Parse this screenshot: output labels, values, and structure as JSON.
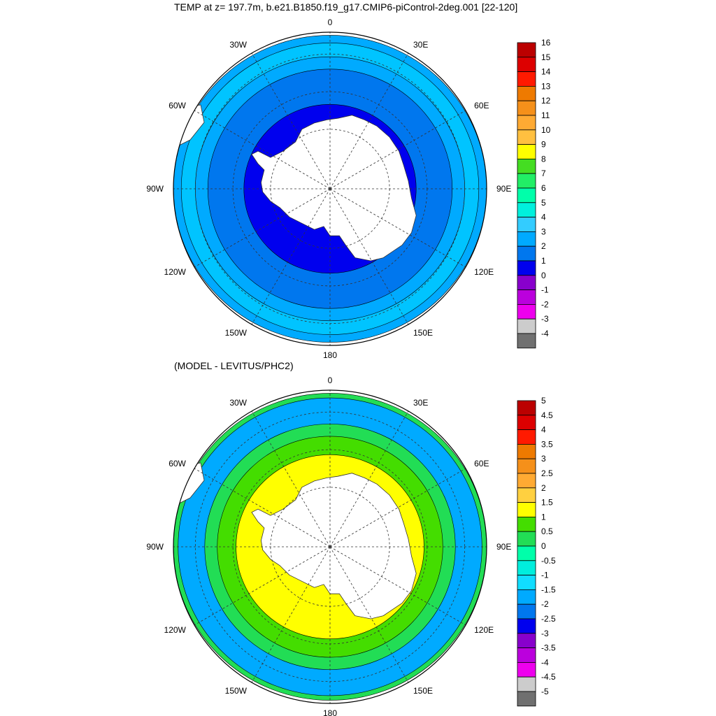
{
  "top_panel": {
    "title": "TEMP at z= 197.7m, b.e21.B1850.f19_g17.CMIP6-piControl-2deg.001 [22-120]",
    "lon_labels": [
      {
        "text": "0",
        "lon": 0
      },
      {
        "text": "30E",
        "lon": 30
      },
      {
        "text": "60E",
        "lon": 60
      },
      {
        "text": "90E",
        "lon": 90
      },
      {
        "text": "120E",
        "lon": 120
      },
      {
        "text": "150E",
        "lon": 150
      },
      {
        "text": "180",
        "lon": 180
      },
      {
        "text": "150W",
        "lon": -150
      },
      {
        "text": "120W",
        "lon": -120
      },
      {
        "text": "90W",
        "lon": -90
      },
      {
        "text": "60W",
        "lon": -60
      },
      {
        "text": "30W",
        "lon": -30
      }
    ],
    "colorbar": {
      "labels": [
        "16",
        "15",
        "14",
        "13",
        "12",
        "11",
        "10",
        "9",
        "8",
        "7",
        "6",
        "5",
        "4",
        "3",
        "2",
        "1",
        "0",
        "-1",
        "-2",
        "-3",
        "-4"
      ],
      "colors": [
        "#bb0000",
        "#dd0000",
        "#ff1a00",
        "#ee7a00",
        "#f5901a",
        "#ffaa33",
        "#ffc040",
        "#ffff00",
        "#44dd22",
        "#22ee66",
        "#00ffaa",
        "#00f0dd",
        "#33ccff",
        "#00aaff",
        "#0077ee",
        "#0000ee",
        "#8800cc",
        "#bb00dd",
        "#ee00ee",
        "#cccccc",
        "#707070"
      ]
    },
    "rings": [
      {
        "color": "#00aaff",
        "r": 1.0
      },
      {
        "color": "#00c4ff",
        "r": 0.95
      },
      {
        "color": "#00aaff",
        "r": 0.86
      },
      {
        "color": "#0077ee",
        "r": 0.78
      },
      {
        "color": "#0000ee",
        "r": 0.55
      }
    ]
  },
  "bottom_panel": {
    "title": "(MODEL - LEVITUS/PHC2)",
    "lon_labels": [
      {
        "text": "0",
        "lon": 0
      },
      {
        "text": "30E",
        "lon": 30
      },
      {
        "text": "60E",
        "lon": 60
      },
      {
        "text": "90E",
        "lon": 90
      },
      {
        "text": "120E",
        "lon": 120
      },
      {
        "text": "150E",
        "lon": 150
      },
      {
        "text": "180",
        "lon": 180
      },
      {
        "text": "150W",
        "lon": -150
      },
      {
        "text": "120W",
        "lon": -120
      },
      {
        "text": "90W",
        "lon": -90
      },
      {
        "text": "60W",
        "lon": -60
      },
      {
        "text": "30W",
        "lon": -30
      }
    ],
    "colorbar": {
      "labels": [
        "5",
        "4.5",
        "4",
        "3.5",
        "3",
        "2.5",
        "2",
        "1.5",
        "1",
        "0.5",
        "0",
        "-0.5",
        "-1",
        "-1.5",
        "-2",
        "-2.5",
        "-3",
        "-3.5",
        "-4",
        "-4.5",
        "-5"
      ],
      "colors": [
        "#bb0000",
        "#dd0000",
        "#ff1a00",
        "#ee7a00",
        "#f5901a",
        "#ffaa33",
        "#ffd040",
        "#ffff00",
        "#44dd00",
        "#22dd55",
        "#00ffaa",
        "#00eedd",
        "#11ddff",
        "#00aaff",
        "#0077ee",
        "#0000ee",
        "#8800cc",
        "#bb00dd",
        "#ee00ee",
        "#cccccc",
        "#707070"
      ]
    },
    "rings": [
      {
        "color": "#22dd55",
        "r": 1.0
      },
      {
        "color": "#00aaff",
        "r": 0.97
      },
      {
        "color": "#22dd55",
        "r": 0.8
      },
      {
        "color": "#44dd00",
        "r": 0.72
      },
      {
        "color": "#ffff00",
        "r": 0.6
      }
    ]
  }
}
